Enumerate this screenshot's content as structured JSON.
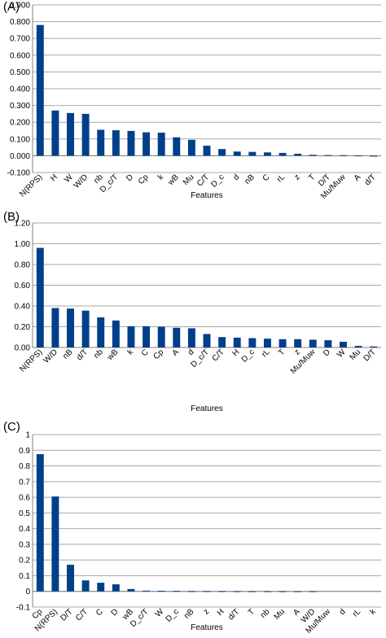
{
  "panels": [
    {
      "label": "(A)",
      "chart_data": {
        "type": "bar",
        "xlabel": "Features",
        "ylabel": "",
        "ylim": [
          -0.1,
          0.9
        ],
        "yticks": [
          -0.1,
          0.0,
          0.1,
          0.2,
          0.3,
          0.4,
          0.5,
          0.6,
          0.7,
          0.8,
          0.9
        ],
        "ytick_labels": [
          "-0.100",
          "0.000",
          "0.100",
          "0.200",
          "0.300",
          "0.400",
          "0.500",
          "0.600",
          "0.700",
          "0.800",
          "0.900"
        ],
        "grid": true,
        "categories": [
          "N(RPS)",
          "H",
          "W",
          "W/D",
          "nb",
          "D_c/T",
          "D",
          "Cp",
          "k",
          "wB",
          "Mu",
          "C/T",
          "D_c",
          "d",
          "nB",
          "C",
          "rL",
          "z",
          "T",
          "D/T",
          "Mu/Muw",
          "A",
          "d/T"
        ],
        "values": [
          0.78,
          0.27,
          0.255,
          0.25,
          0.155,
          0.152,
          0.148,
          0.14,
          0.138,
          0.11,
          0.095,
          0.06,
          0.04,
          0.025,
          0.023,
          0.02,
          0.017,
          0.012,
          0.006,
          0.004,
          0.003,
          0.002,
          -0.005
        ],
        "bar_color": "#003f8a"
      }
    },
    {
      "label": "(B)",
      "chart_data": {
        "type": "bar",
        "xlabel": "Features",
        "ylabel": "",
        "ylim": [
          0,
          1.2
        ],
        "yticks": [
          0.0,
          0.2,
          0.4,
          0.6,
          0.8,
          1.0,
          1.2
        ],
        "ytick_labels": [
          "0.00",
          "0.20",
          "0.40",
          "0.60",
          "0.80",
          "1.00",
          "1.20"
        ],
        "grid": true,
        "categories": [
          "N(RPS)",
          "W/D",
          "nB",
          "d/T",
          "nb",
          "wB",
          "k",
          "C",
          "Cp",
          "A",
          "d",
          "D_c/T",
          "C/T",
          "H",
          "D_c",
          "rL",
          "T",
          "z",
          "Mu/Muw",
          "D",
          "W",
          "Mu",
          "D/T"
        ],
        "values": [
          0.96,
          0.38,
          0.375,
          0.355,
          0.29,
          0.26,
          0.205,
          0.205,
          0.2,
          0.19,
          0.185,
          0.13,
          0.1,
          0.095,
          0.09,
          0.085,
          0.08,
          0.08,
          0.075,
          0.07,
          0.055,
          0.015,
          0.01
        ],
        "bar_color": "#003f8a"
      }
    },
    {
      "label": "(C)",
      "chart_data": {
        "type": "bar",
        "xlabel": "Features",
        "ylabel": "",
        "ylim": [
          -0.1,
          1.0
        ],
        "yticks": [
          -0.1,
          0,
          0.1,
          0.2,
          0.3,
          0.4,
          0.5,
          0.6,
          0.7,
          0.8,
          0.9,
          1
        ],
        "ytick_labels": [
          "-0.1",
          "0",
          "0.1",
          "0.2",
          "0.3",
          "0.4",
          "0.5",
          "0.6",
          "0.7",
          "0.8",
          "0.9",
          "1"
        ],
        "grid": true,
        "categories": [
          "Cp",
          "N(RPS)",
          "D/T",
          "C/T",
          "C",
          "D",
          "wB",
          "D_c/T",
          "W",
          "D_c",
          "nB",
          "z",
          "H",
          "d/T",
          "T",
          "nb",
          "Mu",
          "A",
          "W/D",
          "Mu/Muw",
          "d",
          "rL",
          "k"
        ],
        "values": [
          0.875,
          0.605,
          0.17,
          0.07,
          0.055,
          0.045,
          0.015,
          0.005,
          0.004,
          0.003,
          0.002,
          0.002,
          0.002,
          0.001,
          0.001,
          0.001,
          0.001,
          0.001,
          0.001,
          0.0,
          0.0,
          0.0,
          0.0
        ],
        "bar_color": "#003f8a"
      }
    }
  ]
}
